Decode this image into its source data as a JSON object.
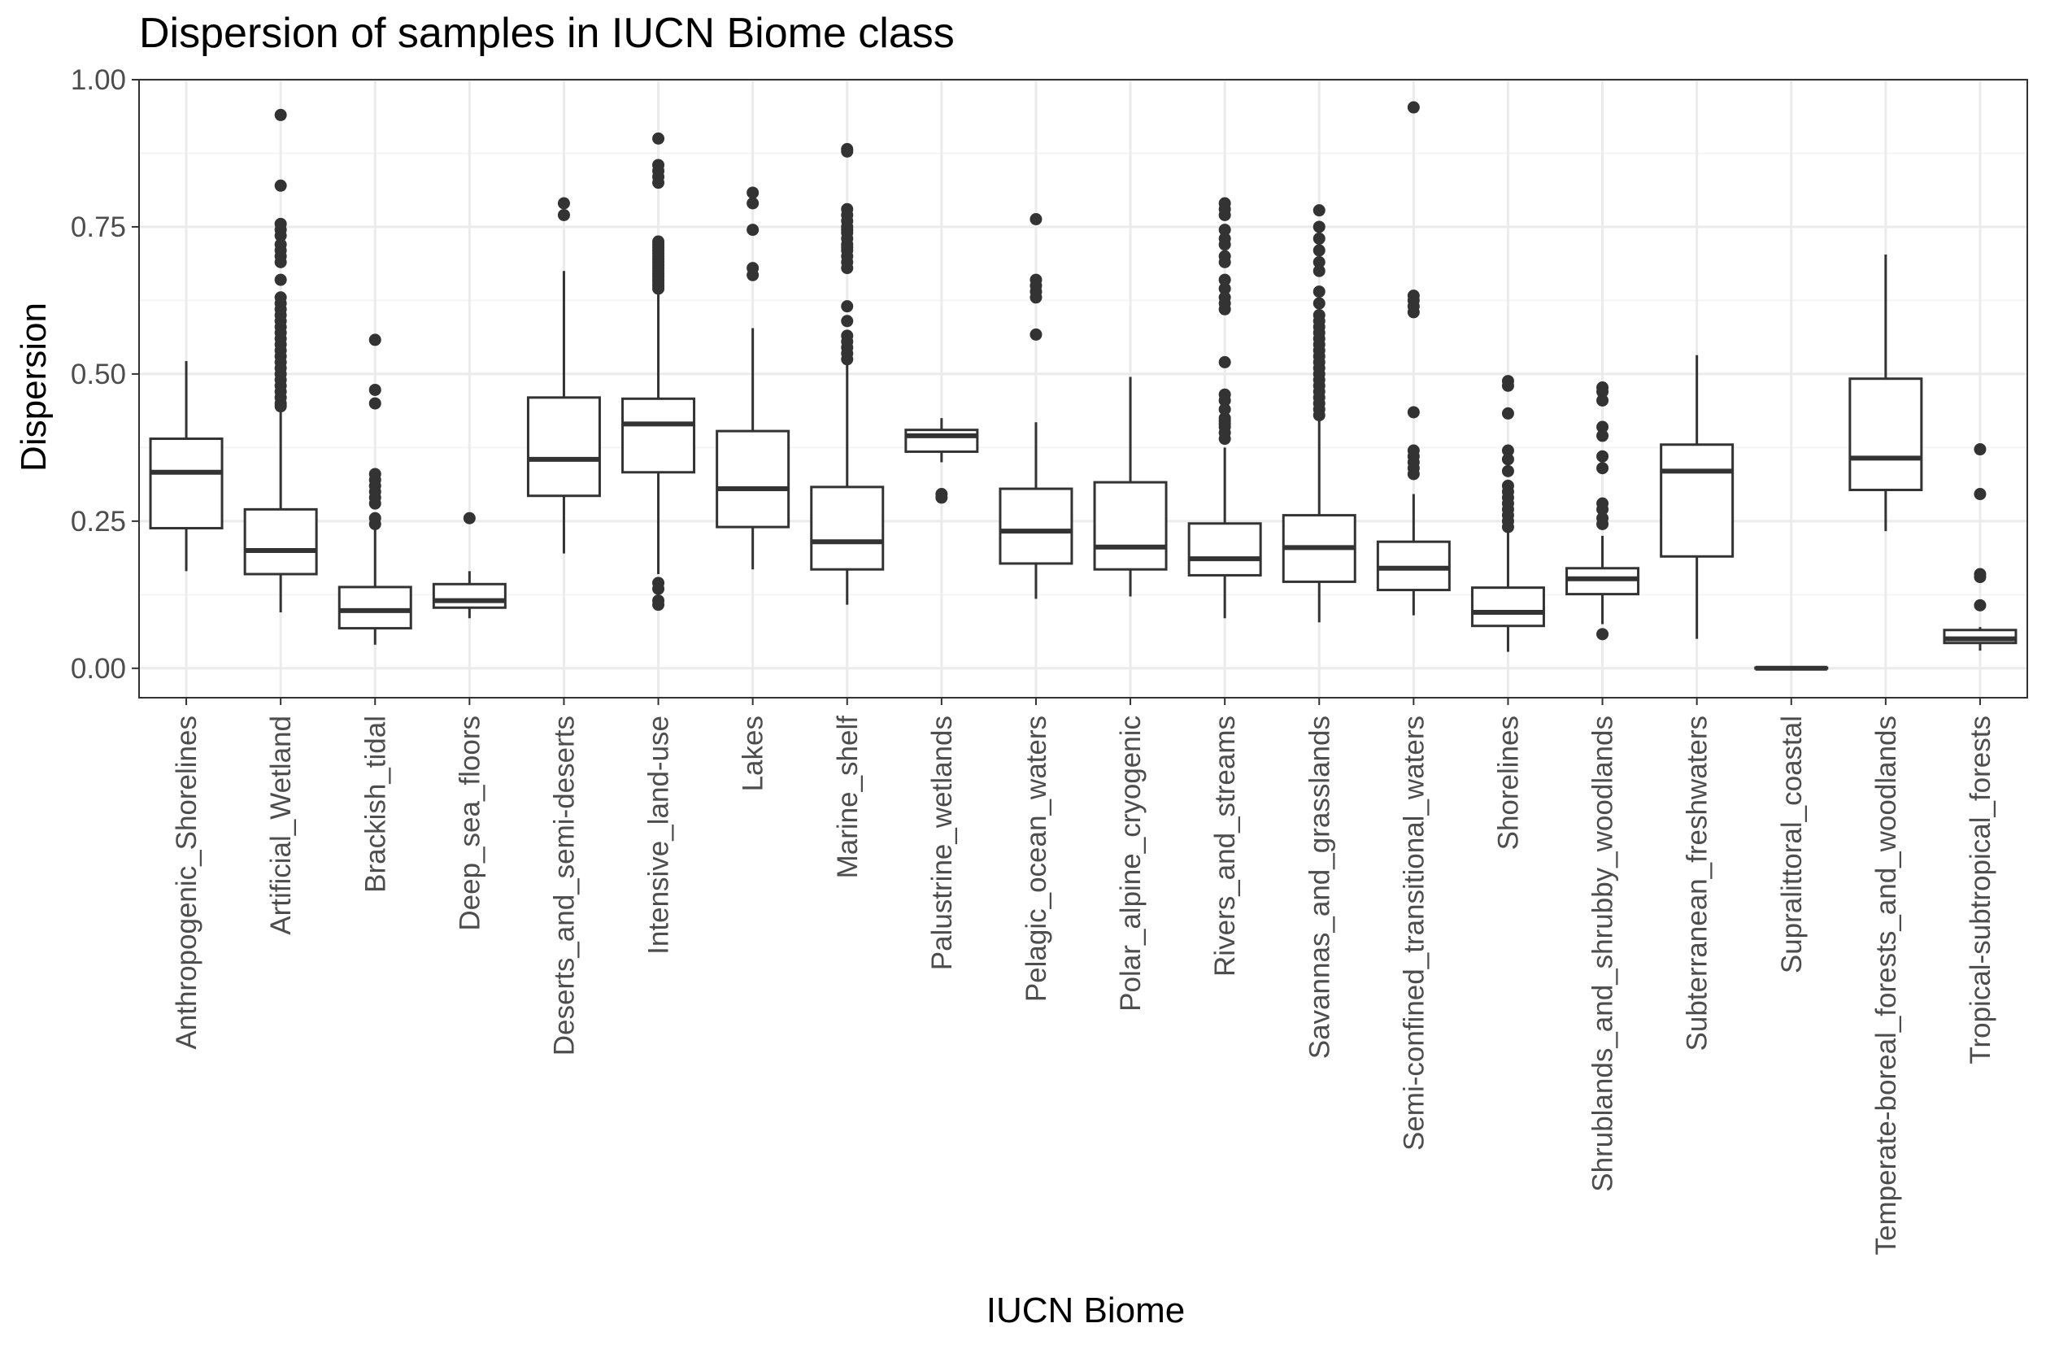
{
  "chart_data": {
    "type": "boxplot",
    "title": "Dispersion of samples in IUCN Biome class",
    "xlabel": "IUCN Biome",
    "ylabel": "Dispersion",
    "ylim": [
      -0.05,
      1.0
    ],
    "y_ticks": [
      0.0,
      0.25,
      0.5,
      0.75,
      1.0
    ],
    "y_tick_labels": [
      "0.00",
      "0.25",
      "0.50",
      "0.75",
      "1.00"
    ],
    "grid": true,
    "theme": "bw",
    "colors": {
      "box_line": "#333333",
      "point": "#333333",
      "grid_major": "#ebebeb",
      "grid_minor": "#f5f5f5",
      "panel_border": "#333333"
    },
    "categories": [
      "Anthropogenic_Shorelines",
      "Artificial_Wetland",
      "Brackish_tidal",
      "Deep_sea_floors",
      "Deserts_and_semi-deserts",
      "Intensive_land-use",
      "Lakes",
      "Marine_shelf",
      "Palustrine_wetlands",
      "Pelagic_ocean_waters",
      "Polar_alpine_cryogenic",
      "Rivers_and_streams",
      "Savannas_and_grasslands",
      "Semi-confined_transitional_waters",
      "Shorelines",
      "Shrublands_and_shrubby_woodlands",
      "Subterranean_freshwaters",
      "Supralittoral_coastal",
      "Temperate-boreal_forests_and_woodlands",
      "Tropical-subtropical_forests"
    ],
    "boxes": [
      {
        "whisker_low": 0.165,
        "q1": 0.238,
        "median": 0.333,
        "q3": 0.39,
        "whisker_high": 0.522,
        "outliers": []
      },
      {
        "whisker_low": 0.095,
        "q1": 0.16,
        "median": 0.2,
        "q3": 0.27,
        "whisker_high": 0.44,
        "outliers": [
          0.94,
          0.82,
          0.755,
          0.745,
          0.735,
          0.72,
          0.71,
          0.7,
          0.69,
          0.66,
          0.63,
          0.62,
          0.61,
          0.6,
          0.59,
          0.58,
          0.57,
          0.56,
          0.55,
          0.54,
          0.53,
          0.52,
          0.51,
          0.5,
          0.49,
          0.48,
          0.47,
          0.46,
          0.45,
          0.445
        ]
      },
      {
        "whisker_low": 0.04,
        "q1": 0.068,
        "median": 0.098,
        "q3": 0.138,
        "whisker_high": 0.24,
        "outliers": [
          0.558,
          0.473,
          0.45,
          0.33,
          0.32,
          0.31,
          0.3,
          0.29,
          0.28,
          0.255,
          0.245
        ]
      },
      {
        "whisker_low": 0.085,
        "q1": 0.103,
        "median": 0.115,
        "q3": 0.143,
        "whisker_high": 0.165,
        "outliers": [
          0.255
        ]
      },
      {
        "whisker_low": 0.195,
        "q1": 0.293,
        "median": 0.355,
        "q3": 0.46,
        "whisker_high": 0.675,
        "outliers": [
          0.79,
          0.77
        ]
      },
      {
        "whisker_low": 0.16,
        "q1": 0.333,
        "median": 0.415,
        "q3": 0.458,
        "whisker_high": 0.64,
        "outliers": [
          0.9,
          0.855,
          0.845,
          0.835,
          0.825,
          0.725,
          0.72,
          0.715,
          0.71,
          0.705,
          0.7,
          0.695,
          0.69,
          0.685,
          0.68,
          0.675,
          0.67,
          0.665,
          0.66,
          0.655,
          0.65,
          0.645,
          0.145,
          0.135,
          0.115,
          0.108
        ]
      },
      {
        "whisker_low": 0.168,
        "q1": 0.24,
        "median": 0.305,
        "q3": 0.403,
        "whisker_high": 0.578,
        "outliers": [
          0.808,
          0.79,
          0.745,
          0.68,
          0.668
        ]
      },
      {
        "whisker_low": 0.108,
        "q1": 0.168,
        "median": 0.215,
        "q3": 0.308,
        "whisker_high": 0.52,
        "outliers": [
          0.882,
          0.878,
          0.78,
          0.77,
          0.76,
          0.75,
          0.745,
          0.74,
          0.73,
          0.72,
          0.715,
          0.71,
          0.7,
          0.69,
          0.68,
          0.615,
          0.59,
          0.565,
          0.555,
          0.545,
          0.535,
          0.525
        ]
      },
      {
        "whisker_low": 0.35,
        "q1": 0.368,
        "median": 0.395,
        "q3": 0.405,
        "whisker_high": 0.425,
        "outliers": [
          0.296,
          0.29
        ]
      },
      {
        "whisker_low": 0.118,
        "q1": 0.178,
        "median": 0.233,
        "q3": 0.305,
        "whisker_high": 0.418,
        "outliers": [
          0.763,
          0.66,
          0.65,
          0.64,
          0.63,
          0.567
        ]
      },
      {
        "whisker_low": 0.122,
        "q1": 0.168,
        "median": 0.206,
        "q3": 0.316,
        "whisker_high": 0.495,
        "outliers": []
      },
      {
        "whisker_low": 0.085,
        "q1": 0.158,
        "median": 0.186,
        "q3": 0.246,
        "whisker_high": 0.375,
        "outliers": [
          0.79,
          0.78,
          0.77,
          0.745,
          0.73,
          0.72,
          0.7,
          0.69,
          0.66,
          0.645,
          0.63,
          0.62,
          0.61,
          0.52,
          0.465,
          0.455,
          0.44,
          0.425,
          0.42,
          0.415,
          0.41,
          0.4,
          0.39
        ]
      },
      {
        "whisker_low": 0.078,
        "q1": 0.147,
        "median": 0.205,
        "q3": 0.26,
        "whisker_high": 0.42,
        "outliers": [
          0.778,
          0.75,
          0.73,
          0.71,
          0.69,
          0.675,
          0.64,
          0.62,
          0.6,
          0.59,
          0.58,
          0.57,
          0.56,
          0.55,
          0.54,
          0.53,
          0.52,
          0.51,
          0.5,
          0.49,
          0.48,
          0.47,
          0.46,
          0.45,
          0.44,
          0.43
        ]
      },
      {
        "whisker_low": 0.09,
        "q1": 0.133,
        "median": 0.17,
        "q3": 0.215,
        "whisker_high": 0.296,
        "outliers": [
          0.953,
          0.633,
          0.625,
          0.615,
          0.605,
          0.435,
          0.37,
          0.36,
          0.35,
          0.34,
          0.33
        ]
      },
      {
        "whisker_low": 0.028,
        "q1": 0.072,
        "median": 0.095,
        "q3": 0.137,
        "whisker_high": 0.232,
        "outliers": [
          0.488,
          0.48,
          0.433,
          0.37,
          0.355,
          0.335,
          0.31,
          0.3,
          0.29,
          0.28,
          0.27,
          0.26,
          0.25,
          0.24
        ]
      },
      {
        "whisker_low": 0.075,
        "q1": 0.126,
        "median": 0.152,
        "q3": 0.17,
        "whisker_high": 0.225,
        "outliers": [
          0.477,
          0.47,
          0.455,
          0.41,
          0.395,
          0.36,
          0.34,
          0.28,
          0.27,
          0.255,
          0.245,
          0.058
        ]
      },
      {
        "whisker_low": 0.05,
        "q1": 0.19,
        "median": 0.335,
        "q3": 0.38,
        "whisker_high": 0.532,
        "outliers": []
      },
      {
        "whisker_low": 0.0,
        "q1": 0.0,
        "median": 0.0,
        "q3": 0.001,
        "whisker_high": 0.001,
        "outliers": []
      },
      {
        "whisker_low": 0.233,
        "q1": 0.303,
        "median": 0.357,
        "q3": 0.492,
        "whisker_high": 0.703,
        "outliers": []
      },
      {
        "whisker_low": 0.03,
        "q1": 0.043,
        "median": 0.05,
        "q3": 0.065,
        "whisker_high": 0.07,
        "outliers": [
          0.372,
          0.296,
          0.16,
          0.155,
          0.107
        ]
      }
    ]
  }
}
